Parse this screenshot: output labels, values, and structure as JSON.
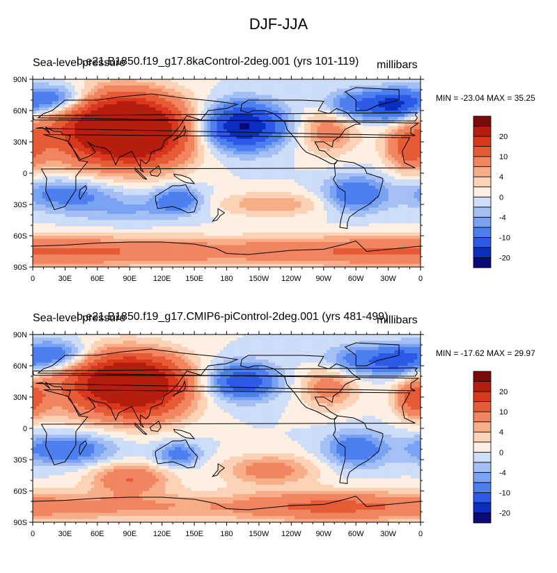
{
  "title": "DJF-JJA",
  "panels": [
    {
      "left_title": "Sea-level pressure",
      "center_title": "b.e21.B1850.f19_g17.8kaControl-2deg.001 (yrs 101-119)",
      "units": "millibars",
      "min_label": "MIN = -23.04",
      "max_label": "MAX =  35.25",
      "min": -23.04,
      "max": 35.25,
      "features": [
        {
          "lon": 90,
          "lat": 45,
          "a": 30,
          "sx": 35,
          "sy": 20
        },
        {
          "lon": 60,
          "lat": 40,
          "a": 12,
          "sx": 40,
          "sy": 25
        },
        {
          "lon": 110,
          "lat": 20,
          "a": 6,
          "sx": 30,
          "sy": 15
        },
        {
          "lon": 195,
          "lat": 45,
          "a": -21,
          "sx": 25,
          "sy": 15
        },
        {
          "lon": 20,
          "lat": 70,
          "a": -12,
          "sx": 25,
          "sy": 10
        },
        {
          "lon": -60,
          "lat": 65,
          "a": -10,
          "sx": 20,
          "sy": 10
        },
        {
          "lon": -25,
          "lat": 65,
          "a": -14,
          "sx": 15,
          "sy": 10
        },
        {
          "lon": -85,
          "lat": 40,
          "a": 8,
          "sx": 18,
          "sy": 15
        },
        {
          "lon": -10,
          "lat": 25,
          "a": 12,
          "sx": 15,
          "sy": 15
        },
        {
          "lon": 135,
          "lat": -25,
          "a": -9,
          "sx": 15,
          "sy": 8
        },
        {
          "lon": 30,
          "lat": -20,
          "a": -8,
          "sx": 30,
          "sy": 10
        },
        {
          "lon": -60,
          "lat": -20,
          "a": -10,
          "sx": 20,
          "sy": 12
        },
        {
          "lon": -140,
          "lat": -30,
          "a": 6,
          "sx": 35,
          "sy": 8
        },
        {
          "lon": 0,
          "lat": -75,
          "a": 11,
          "sx": 200,
          "sy": 10
        },
        {
          "lon": 90,
          "lat": -35,
          "a": -4,
          "sx": 40,
          "sy": 10
        }
      ]
    },
    {
      "left_title": "Sea-level pressure",
      "center_title": "b.e21.B1850.f19_g17.CMIP6-piControl-2deg.001 (yrs 481-499)",
      "units": "millibars",
      "min_label": "MIN = -17.62",
      "max_label": "MAX =  29.97",
      "min": -17.62,
      "max": 29.97,
      "features": [
        {
          "lon": 95,
          "lat": 45,
          "a": 26,
          "sx": 33,
          "sy": 18
        },
        {
          "lon": 60,
          "lat": 40,
          "a": 10,
          "sx": 40,
          "sy": 22
        },
        {
          "lon": 110,
          "lat": 20,
          "a": 5,
          "sx": 28,
          "sy": 15
        },
        {
          "lon": 195,
          "lat": 45,
          "a": -14,
          "sx": 22,
          "sy": 12
        },
        {
          "lon": 20,
          "lat": 70,
          "a": -11,
          "sx": 22,
          "sy": 10
        },
        {
          "lon": -55,
          "lat": 65,
          "a": -9,
          "sx": 25,
          "sy": 10
        },
        {
          "lon": -20,
          "lat": 65,
          "a": -9,
          "sx": 15,
          "sy": 10
        },
        {
          "lon": -85,
          "lat": 40,
          "a": 8,
          "sx": 18,
          "sy": 15
        },
        {
          "lon": -5,
          "lat": 28,
          "a": 12,
          "sx": 12,
          "sy": 12
        },
        {
          "lon": 135,
          "lat": -25,
          "a": -8,
          "sx": 15,
          "sy": 8
        },
        {
          "lon": 30,
          "lat": -20,
          "a": -10,
          "sx": 30,
          "sy": 10
        },
        {
          "lon": -60,
          "lat": -20,
          "a": -9,
          "sx": 20,
          "sy": 12
        },
        {
          "lon": -140,
          "lat": -40,
          "a": 8,
          "sx": 30,
          "sy": 10
        },
        {
          "lon": 90,
          "lat": -48,
          "a": 10,
          "sx": 25,
          "sy": 10
        },
        {
          "lon": 0,
          "lat": -75,
          "a": 7,
          "sx": 200,
          "sy": 10
        },
        {
          "lon": -90,
          "lat": -75,
          "a": 5,
          "sx": 60,
          "sy": 10
        }
      ]
    }
  ],
  "map": {
    "projection": "cylindrical-equidistant",
    "lon_range": [
      0,
      360
    ],
    "lat_range": [
      -90,
      90
    ],
    "lat_ticks": [
      {
        "lat": 90,
        "label": "90N"
      },
      {
        "lat": 60,
        "label": "60N"
      },
      {
        "lat": 30,
        "label": "30N"
      },
      {
        "lat": 0,
        "label": "0"
      },
      {
        "lat": -30,
        "label": "30S"
      },
      {
        "lat": -60,
        "label": "60S"
      },
      {
        "lat": -90,
        "label": "90S"
      }
    ],
    "lon_ticks": [
      {
        "lon": 0,
        "label": "0"
      },
      {
        "lon": 30,
        "label": "30E"
      },
      {
        "lon": 60,
        "label": "60E"
      },
      {
        "lon": 90,
        "label": "90E"
      },
      {
        "lon": 120,
        "label": "120E"
      },
      {
        "lon": 150,
        "label": "150E"
      },
      {
        "lon": 180,
        "label": "180"
      },
      {
        "lon": 210,
        "label": "150W"
      },
      {
        "lon": 240,
        "label": "120W"
      },
      {
        "lon": 270,
        "label": "90W"
      },
      {
        "lon": 300,
        "label": "60W"
      },
      {
        "lon": 330,
        "label": "30W"
      },
      {
        "lon": 360,
        "label": "0"
      }
    ]
  },
  "colorbar": {
    "levels": [
      -25,
      -20,
      -15,
      -10,
      -6,
      -4,
      -2,
      0,
      2,
      4,
      6,
      10,
      15,
      20,
      25
    ],
    "labels": [
      {
        "value": 20,
        "label": "20"
      },
      {
        "value": 10,
        "label": "10"
      },
      {
        "value": 4,
        "label": "4"
      },
      {
        "value": 0,
        "label": "0"
      },
      {
        "value": -4,
        "label": "-4"
      },
      {
        "value": -10,
        "label": "-10"
      },
      {
        "value": -20,
        "label": "-20"
      }
    ],
    "colors": [
      "#0a0a78",
      "#0a2fc0",
      "#2a5ae6",
      "#4d7fef",
      "#7aa2f2",
      "#a3bff4",
      "#cddcf7",
      "#fdf0e3",
      "#fbd2b5",
      "#f6ad88",
      "#f08560",
      "#e65a35",
      "#d9381c",
      "#b51d0e",
      "#7d0a0a"
    ]
  }
}
